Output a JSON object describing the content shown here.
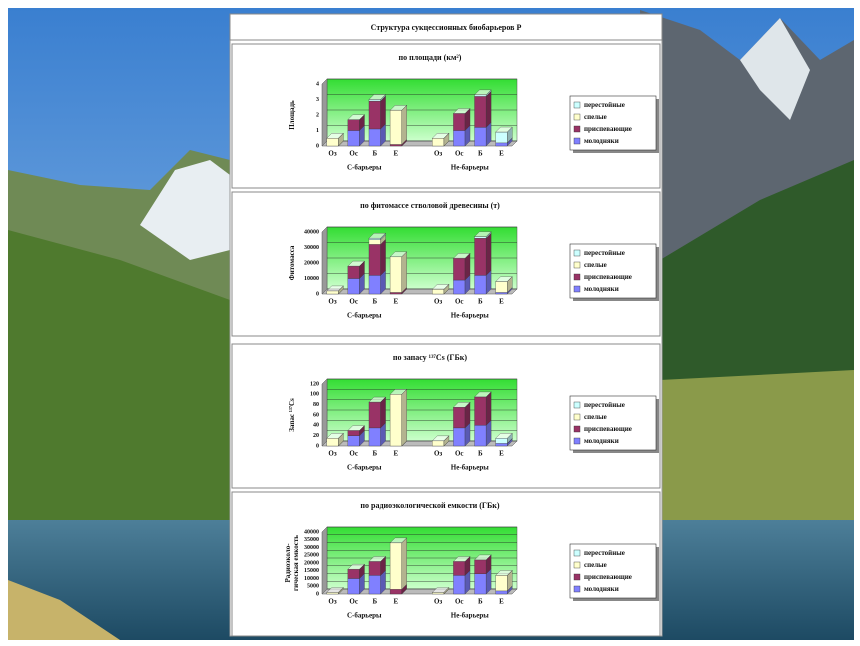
{
  "title": "Структура сукцессионных биобарьеров Р",
  "chart_data": [
    {
      "type": "stacked-bar-3d",
      "title": "по площади (км²)",
      "ylabel": [
        "Площадь"
      ],
      "categories": [
        "Оз",
        "Ос",
        "Б",
        "Е",
        "Оз",
        "Ос",
        "Б",
        "Е"
      ],
      "groups": [
        "С-барьеры",
        "Не-барьеры"
      ],
      "ylim": [
        0,
        4
      ],
      "yticks": [
        0,
        1,
        2,
        3,
        4
      ],
      "grid": true,
      "legend": "right",
      "series": [
        {
          "name": "молодняки",
          "color": "#8080ff",
          "values": [
            0,
            1.0,
            1.1,
            0,
            0,
            1.0,
            1.2,
            0.2
          ]
        },
        {
          "name": "приспевающие",
          "color": "#993366",
          "values": [
            0,
            0.7,
            1.8,
            0.1,
            0,
            1.1,
            2.0,
            0
          ]
        },
        {
          "name": "спелые",
          "color": "#ffffcc",
          "values": [
            0.5,
            0,
            0,
            2.2,
            0.5,
            0,
            0,
            0
          ]
        },
        {
          "name": "перестойные",
          "color": "#ccffff",
          "values": [
            0,
            0,
            0.1,
            0,
            0,
            0,
            0.1,
            0.7
          ]
        }
      ]
    },
    {
      "type": "stacked-bar-3d",
      "title": "по фитомассе стволовой древесины (т)",
      "ylabel": [
        "Фитомасса"
      ],
      "categories": [
        "Оз",
        "Ос",
        "Б",
        "Е",
        "Оз",
        "Ос",
        "Б",
        "Е"
      ],
      "groups": [
        "С-барьеры",
        "Не-барьеры"
      ],
      "ylim": [
        0,
        40000
      ],
      "yticks": [
        0,
        10000,
        20000,
        30000,
        40000
      ],
      "grid": true,
      "legend": "right",
      "series": [
        {
          "name": "молодняки",
          "color": "#8080ff",
          "values": [
            0,
            10000,
            12000,
            0,
            0,
            9000,
            12000,
            1000
          ]
        },
        {
          "name": "приспевающие",
          "color": "#993366",
          "values": [
            0,
            8000,
            20000,
            1000,
            0,
            14000,
            24000,
            0
          ]
        },
        {
          "name": "спелые",
          "color": "#ffffcc",
          "values": [
            2000,
            0,
            3000,
            23000,
            3000,
            0,
            0,
            7000
          ]
        },
        {
          "name": "перестойные",
          "color": "#ccffff",
          "values": [
            0,
            0,
            1000,
            0,
            0,
            0,
            1000,
            0
          ]
        }
      ]
    },
    {
      "type": "stacked-bar-3d",
      "title": "по запасу ¹³⁷Cs (ГБк)",
      "ylabel": [
        "Запас ¹³⁷Cs"
      ],
      "categories": [
        "Оз",
        "Ос",
        "Б",
        "Е",
        "Оз",
        "Ос",
        "Б",
        "Е"
      ],
      "groups": [
        "С-барьеры",
        "Не-барьеры"
      ],
      "ylim": [
        0,
        120
      ],
      "yticks": [
        0,
        20,
        40,
        60,
        80,
        100,
        120
      ],
      "grid": true,
      "legend": "right",
      "series": [
        {
          "name": "молодняки",
          "color": "#8080ff",
          "values": [
            0,
            20,
            35,
            0,
            0,
            35,
            40,
            5
          ]
        },
        {
          "name": "приспевающие",
          "color": "#993366",
          "values": [
            0,
            10,
            50,
            0,
            0,
            40,
            55,
            0
          ]
        },
        {
          "name": "спелые",
          "color": "#ffffcc",
          "values": [
            15,
            0,
            0,
            100,
            10,
            0,
            0,
            0
          ]
        },
        {
          "name": "перестойные",
          "color": "#ccffff",
          "values": [
            0,
            0,
            0,
            0,
            0,
            0,
            0,
            10
          ]
        }
      ]
    },
    {
      "type": "stacked-bar-3d",
      "title": "по радиоэкологической емкости (ГБк)",
      "ylabel": [
        "Радиоэколо-",
        "гическая емкость"
      ],
      "categories": [
        "Оз",
        "Ос",
        "Б",
        "Е",
        "Оз",
        "Ос",
        "Б",
        "Е"
      ],
      "groups": [
        "С-барьеры",
        "Не-барьеры"
      ],
      "ylim": [
        0,
        40000
      ],
      "yticks": [
        0,
        5000,
        10000,
        15000,
        20000,
        25000,
        30000,
        35000,
        40000
      ],
      "grid": true,
      "legend": "right",
      "series": [
        {
          "name": "молодняки",
          "color": "#8080ff",
          "values": [
            0,
            10000,
            12000,
            0,
            0,
            12000,
            13000,
            2000
          ]
        },
        {
          "name": "приспевающие",
          "color": "#993366",
          "values": [
            0,
            6000,
            9000,
            3000,
            0,
            9000,
            9000,
            0
          ]
        },
        {
          "name": "спелые",
          "color": "#ffffcc",
          "values": [
            1000,
            0,
            0,
            30000,
            1000,
            0,
            0,
            10000
          ]
        },
        {
          "name": "перестойные",
          "color": "#ccffff",
          "values": [
            0,
            0,
            0,
            0,
            0,
            0,
            0,
            0
          ]
        }
      ]
    }
  ]
}
